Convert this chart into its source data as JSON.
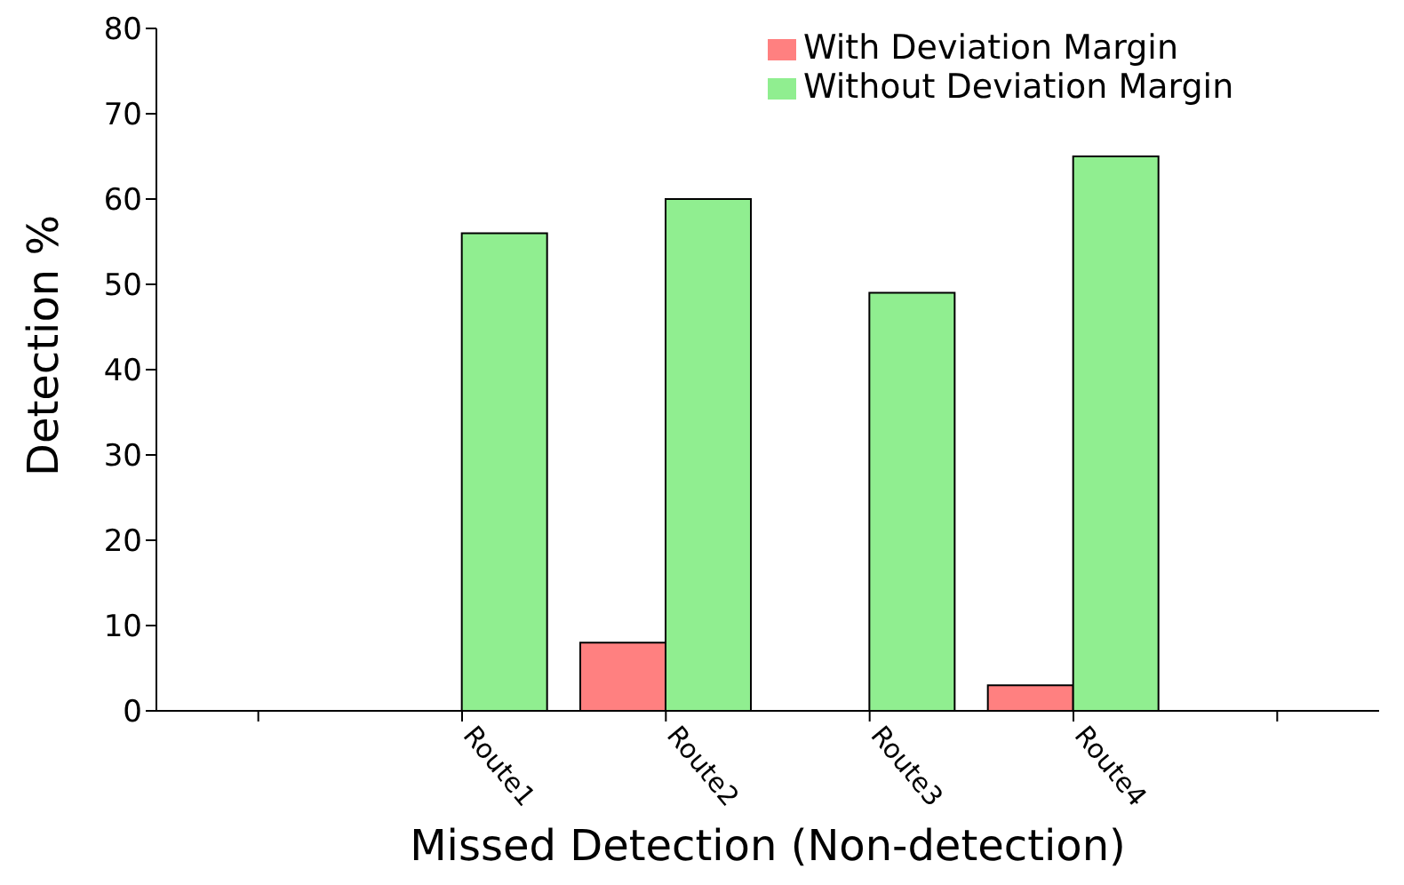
{
  "chart_data": {
    "type": "bar",
    "xlabel": "Missed Detection (Non-detection)",
    "ylabel": "Detection %",
    "categories": [
      null,
      "Route1",
      "Route2",
      "Route3",
      "Route4",
      null
    ],
    "series": [
      {
        "name": "With Deviation Margin",
        "color": "#ff8080",
        "values": [
          null,
          null,
          8,
          null,
          3,
          null
        ]
      },
      {
        "name": "Without Deviation Margin",
        "color": "#90ee90",
        "values": [
          null,
          56,
          60,
          49,
          65,
          null
        ]
      }
    ],
    "ylim": [
      0,
      80
    ],
    "yticks": [
      0,
      10,
      20,
      30,
      40,
      50,
      60,
      70,
      80
    ],
    "legend": "top right",
    "grid": false
  }
}
